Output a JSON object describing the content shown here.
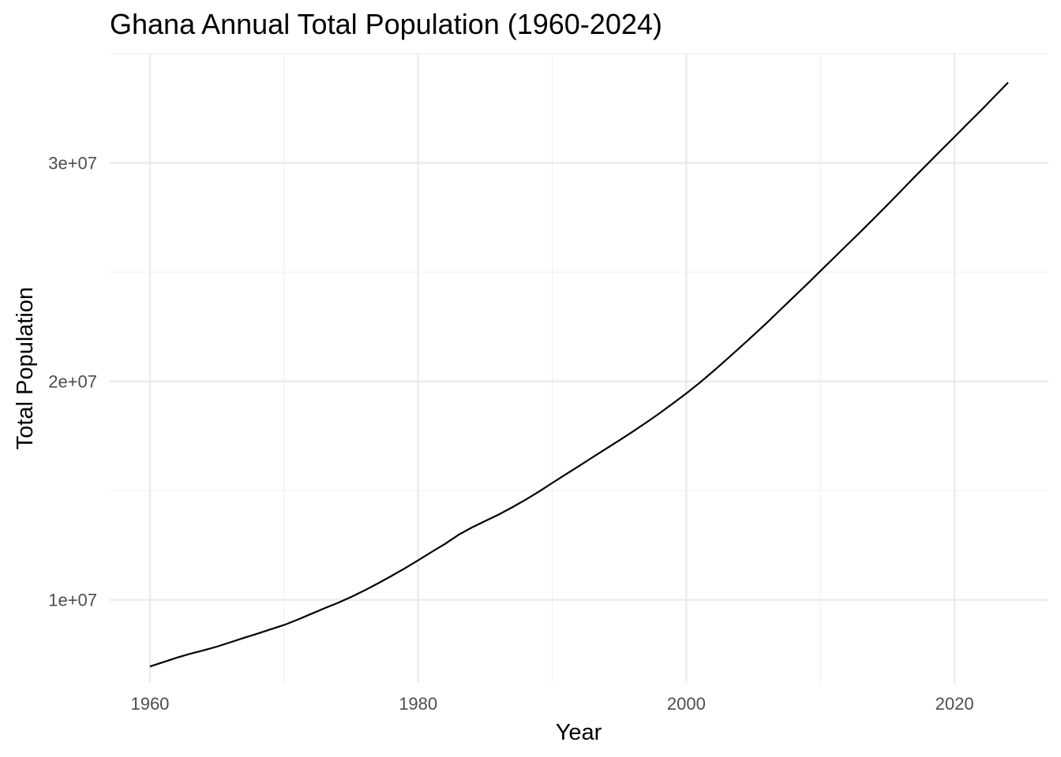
{
  "chart_data": {
    "type": "line",
    "title": "Ghana Annual Total Population (1960-2024)",
    "xlabel": "Year",
    "ylabel": "Total Population",
    "xlim": [
      1957,
      2027
    ],
    "ylim": [
      6200000,
      35000000
    ],
    "x_ticks": [
      1960,
      1980,
      2000,
      2020
    ],
    "x_tick_labels": [
      "1960",
      "1980",
      "2000",
      "2020"
    ],
    "y_ticks": [
      10000000,
      20000000,
      30000000
    ],
    "y_tick_labels": [
      "1e+07",
      "2e+07",
      "3e+07"
    ],
    "grid": true,
    "legend": "none",
    "line_color": "#000000",
    "series": [
      {
        "x": [
          1960,
          1961,
          1962,
          1963,
          1964,
          1965,
          1966,
          1967,
          1968,
          1969,
          1970,
          1971,
          1972,
          1973,
          1974,
          1975,
          1976,
          1977,
          1978,
          1979,
          1980,
          1981,
          1982,
          1983,
          1984,
          1985,
          1986,
          1987,
          1988,
          1989,
          1990,
          1991,
          1992,
          1993,
          1994,
          1995,
          1996,
          1997,
          1998,
          1999,
          2000,
          2001,
          2002,
          2003,
          2004,
          2005,
          2006,
          2007,
          2008,
          2009,
          2010,
          2011,
          2012,
          2013,
          2014,
          2015,
          2016,
          2017,
          2018,
          2019,
          2020,
          2021,
          2022,
          2023,
          2024
        ],
        "values": [
          6950000,
          7150000,
          7350000,
          7530000,
          7690000,
          7860000,
          8060000,
          8260000,
          8450000,
          8650000,
          8850000,
          9090000,
          9350000,
          9610000,
          9860000,
          10130000,
          10430000,
          10750000,
          11090000,
          11440000,
          11810000,
          12190000,
          12560000,
          12970000,
          13310000,
          13610000,
          13900000,
          14230000,
          14580000,
          14950000,
          15350000,
          15740000,
          16130000,
          16520000,
          16910000,
          17300000,
          17700000,
          18110000,
          18540000,
          18990000,
          19450000,
          19940000,
          20460000,
          21000000,
          21550000,
          22110000,
          22680000,
          23270000,
          23860000,
          24450000,
          25050000,
          25650000,
          26250000,
          26850000,
          27460000,
          28080000,
          28710000,
          29340000,
          29960000,
          30580000,
          31190000,
          31810000,
          32420000,
          33050000,
          33680000
        ]
      }
    ]
  }
}
